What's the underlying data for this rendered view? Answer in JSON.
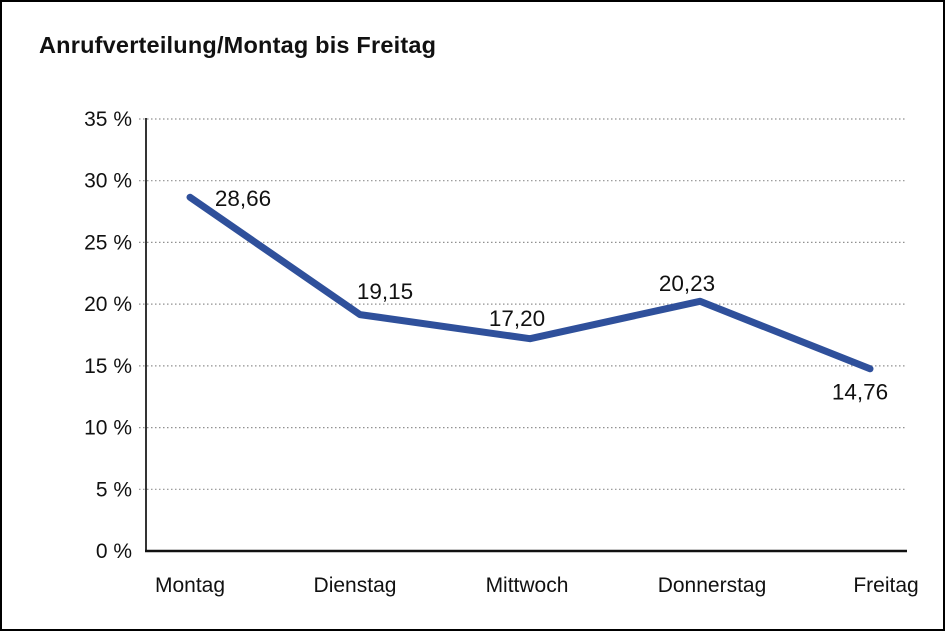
{
  "window": {
    "background_color": "#ffffff",
    "frame_border_color": "#000000"
  },
  "chart_data": {
    "type": "line",
    "title": "Anrufverteilung/Montag bis Freitag",
    "categories": [
      "Montag",
      "Dienstag",
      "Mittwoch",
      "Donnerstag",
      "Freitag"
    ],
    "series": [
      {
        "name": "Anrufverteilung",
        "values": [
          28.66,
          19.15,
          17.2,
          20.23,
          14.76
        ]
      }
    ],
    "data_labels": [
      "28,66",
      "19,15",
      "17,20",
      "20,23",
      "14,76"
    ],
    "xlabel": "",
    "ylabel": "",
    "ylim": [
      0,
      35
    ],
    "y_tick_values": [
      0,
      5,
      10,
      15,
      20,
      25,
      30,
      35
    ],
    "y_tick_labels": [
      "0 %",
      "5 %",
      "10 %",
      "15 %",
      "20 %",
      "25 %",
      "30 %",
      "35 %"
    ],
    "grid": "horizontal dotted",
    "legend": "none",
    "markers": "none",
    "line_color": "#2F509B",
    "grid_color": "#909090",
    "axis_color": "#111111",
    "label_color": "#111111"
  }
}
